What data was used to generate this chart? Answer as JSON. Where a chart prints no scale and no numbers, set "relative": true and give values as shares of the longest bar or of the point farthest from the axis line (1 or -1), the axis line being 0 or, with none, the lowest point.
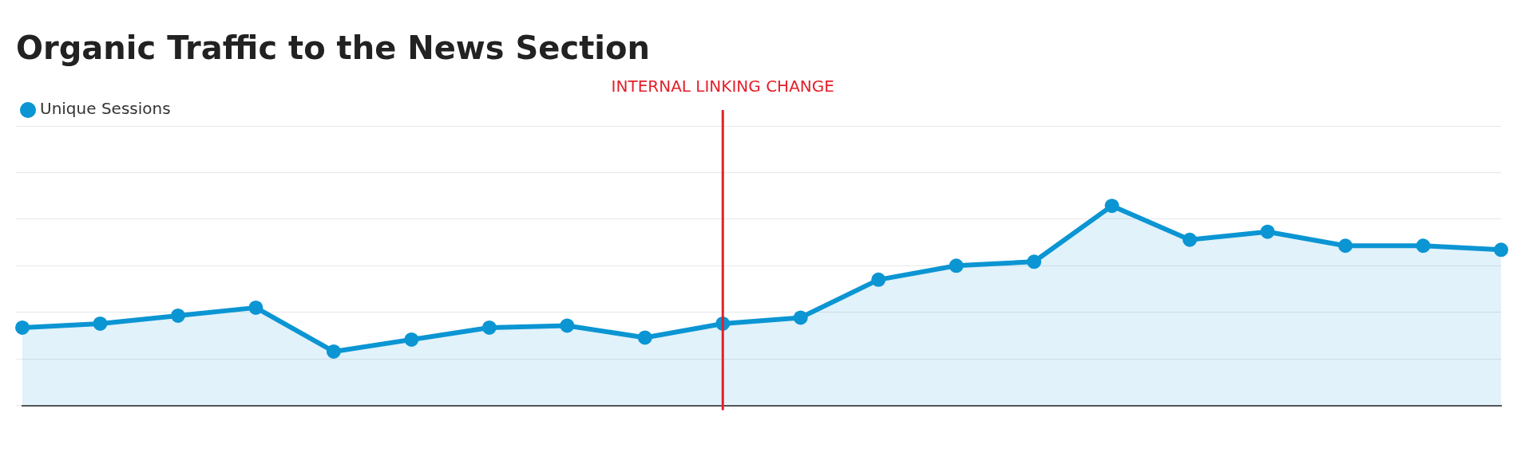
{
  "chart_data": {
    "type": "area",
    "title": "Organic Traffic to the News Section",
    "relative": true,
    "categories": [
      null,
      null,
      null,
      null,
      null,
      null,
      null,
      null,
      null,
      null,
      null,
      null,
      null,
      null,
      null,
      null,
      null,
      null,
      null,
      null
    ],
    "series": [
      {
        "name": "Unique Sessions",
        "color": "#0b95d3",
        "values": [
          0.39,
          0.41,
          0.45,
          0.49,
          0.27,
          0.33,
          0.39,
          0.4,
          0.34,
          0.41,
          0.44,
          0.63,
          0.7,
          0.72,
          1,
          0.83,
          0.87,
          0.8,
          0.8,
          0.78
        ]
      }
    ],
    "annotations": [
      "INTERNAL LINKING CHANGE"
    ],
    "grid": "y",
    "legend": "top left",
    "marker": "circle"
  }
}
